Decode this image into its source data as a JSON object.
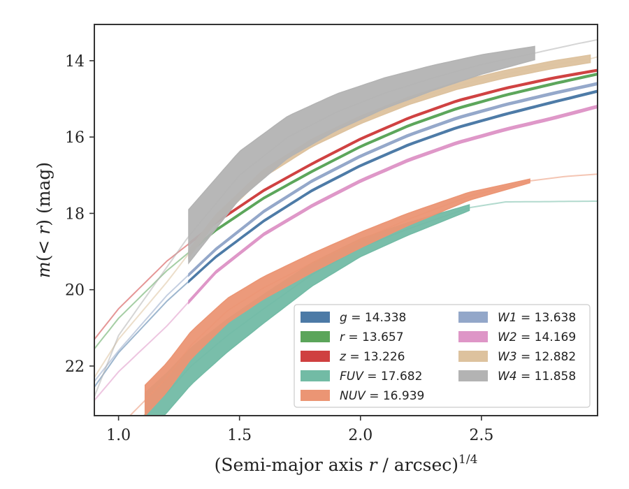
{
  "chart_data": {
    "type": "line",
    "xlabel_main": "(Semi-major axis ",
    "xlabel_var": "r",
    "xlabel_tail": " / arcsec)",
    "xlabel_sup": "1/4",
    "ylabel_pre": "m",
    "ylabel_mid": "(< ",
    "ylabel_var": "r",
    "ylabel_post": ") (mag)",
    "xlim": [
      0.9,
      2.98
    ],
    "ylim": [
      23.3,
      13.05
    ],
    "y_inverted": true,
    "xticks": [
      1.0,
      1.5,
      2.0,
      2.5
    ],
    "xtick_labels": [
      "1.0",
      "1.5",
      "2.0",
      "2.5"
    ],
    "yticks": [
      14,
      16,
      18,
      20,
      22
    ],
    "ytick_labels": [
      "14",
      "16",
      "18",
      "20",
      "22"
    ],
    "grid": false,
    "legend_position": "lower-right",
    "legend_columns": 2,
    "series": [
      {
        "band": "g",
        "name_label": "g",
        "value_label": " = 14.338",
        "color": "#4c7aa6",
        "x": [
          0.9,
          1.0,
          1.2,
          1.4,
          1.6,
          1.8,
          2.0,
          2.2,
          2.4,
          2.6,
          2.8,
          2.98
        ],
        "y": [
          22.55,
          21.65,
          20.3,
          19.15,
          18.2,
          17.4,
          16.75,
          16.2,
          15.75,
          15.4,
          15.08,
          14.8
        ],
        "band_x": [
          1.29,
          2.98
        ],
        "band_width": 0.05
      },
      {
        "band": "r",
        "name_label": "r",
        "value_label": " = 13.657",
        "color": "#5ba55a",
        "x": [
          0.9,
          1.0,
          1.2,
          1.4,
          1.6,
          1.8,
          2.0,
          2.2,
          2.4,
          2.6,
          2.8,
          2.98
        ],
        "y": [
          21.55,
          20.75,
          19.5,
          18.45,
          17.6,
          16.9,
          16.25,
          15.7,
          15.25,
          14.9,
          14.6,
          14.35
        ],
        "band_x": [
          1.29,
          2.98
        ],
        "band_width": 0.05
      },
      {
        "band": "z",
        "name_label": "z",
        "value_label": " = 13.226",
        "color": "#cf4040",
        "x": [
          0.9,
          1.0,
          1.2,
          1.4,
          1.6,
          1.8,
          2.0,
          2.2,
          2.4,
          2.6,
          2.8,
          2.98
        ],
        "y": [
          21.3,
          20.5,
          19.25,
          18.25,
          17.4,
          16.7,
          16.05,
          15.5,
          15.05,
          14.72,
          14.45,
          14.25
        ],
        "band_x": [
          1.29,
          2.98
        ],
        "band_width": 0.05
      },
      {
        "band": "FUV",
        "name_label": "FUV",
        "value_label": " = 17.682",
        "color": "#72bba5",
        "x": [
          0.9,
          1.0,
          1.11,
          1.2,
          1.3,
          1.45,
          1.6,
          1.8,
          2.0,
          2.2,
          2.45,
          2.6,
          2.8,
          2.98
        ],
        "y": [
          24.9,
          24.2,
          23.25,
          22.7,
          22.0,
          21.2,
          20.5,
          19.6,
          18.9,
          18.4,
          17.85,
          17.7,
          17.69,
          17.68
        ],
        "band_x": [
          1.11,
          2.45
        ],
        "band_width_start": 1.1,
        "band_width_end": 0.15
      },
      {
        "band": "NUV",
        "name_label": "NUV",
        "value_label": " = 16.939",
        "color": "#eb9574",
        "x": [
          0.9,
          1.0,
          1.11,
          1.2,
          1.3,
          1.45,
          1.6,
          1.8,
          2.0,
          2.2,
          2.45,
          2.7,
          2.85,
          2.98
        ],
        "y": [
          24.3,
          23.6,
          22.9,
          22.3,
          21.45,
          20.55,
          19.95,
          19.3,
          18.7,
          18.15,
          17.55,
          17.15,
          17.03,
          16.97
        ],
        "band_x": [
          1.11,
          2.7
        ],
        "band_width_start": 0.8,
        "band_width_end": 0.1
      },
      {
        "band": "W1",
        "name_label": "W1",
        "value_label": " = 13.638",
        "color": "#93a7c9",
        "x": [
          0.9,
          1.0,
          1.2,
          1.4,
          1.6,
          1.8,
          2.0,
          2.2,
          2.4,
          2.6,
          2.8,
          2.98
        ],
        "y": [
          22.4,
          21.6,
          20.15,
          18.95,
          17.95,
          17.15,
          16.5,
          15.95,
          15.5,
          15.15,
          14.85,
          14.6
        ],
        "band_x": [
          1.29,
          2.98
        ],
        "band_width": 0.06
      },
      {
        "band": "W2",
        "name_label": "W2",
        "value_label": " = 14.169",
        "color": "#de96c7",
        "x": [
          0.9,
          1.0,
          1.2,
          1.4,
          1.6,
          1.8,
          2.0,
          2.2,
          2.4,
          2.6,
          2.8,
          2.98
        ],
        "y": [
          22.9,
          22.15,
          20.95,
          19.55,
          18.55,
          17.8,
          17.15,
          16.6,
          16.15,
          15.8,
          15.5,
          15.2
        ],
        "band_x": [
          1.29,
          2.98
        ],
        "band_width": 0.07
      },
      {
        "band": "W3",
        "name_label": "W3",
        "value_label": " = 12.882",
        "color": "#ddc29e",
        "x": [
          0.9,
          1.0,
          1.2,
          1.4,
          1.6,
          1.8,
          2.0,
          2.2,
          2.4,
          2.6,
          2.8,
          2.95,
          2.98
        ],
        "y": [
          22.3,
          21.3,
          19.8,
          18.15,
          16.95,
          16.15,
          15.55,
          15.05,
          14.65,
          14.35,
          14.1,
          13.95,
          13.9
        ],
        "band_x": [
          1.29,
          2.95
        ],
        "band_width": 0.2
      },
      {
        "band": "W4",
        "name_label": "W4",
        "value_label": " = 11.858",
        "color": "#b3b3b3",
        "x": [
          0.9,
          1.0,
          1.29,
          1.5,
          1.7,
          1.9,
          2.1,
          2.3,
          2.5,
          2.72,
          2.9,
          2.98
        ],
        "y": [
          22.8,
          21.2,
          18.6,
          17.0,
          16.0,
          15.35,
          14.85,
          14.45,
          14.1,
          13.8,
          13.55,
          13.45
        ],
        "band_x": [
          1.29,
          2.72
        ],
        "band_width_start": 1.4,
        "band_width_end": 0.35
      }
    ]
  }
}
